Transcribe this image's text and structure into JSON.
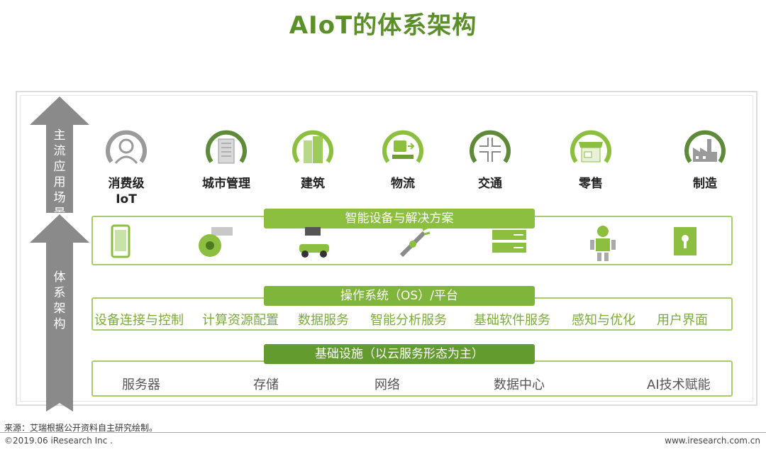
{
  "title": "AIoT的体系架构",
  "axis": {
    "top_label": "主流应用场景",
    "bottom_label": "体系架构"
  },
  "scenarios": [
    {
      "label_line1": "消费级",
      "label_line2": "IoT",
      "icon": "person-icon"
    },
    {
      "label_line1": "城市管理",
      "label_line2": "",
      "icon": "city-building-icon"
    },
    {
      "label_line1": "建筑",
      "label_line2": "",
      "icon": "building-icon"
    },
    {
      "label_line1": "物流",
      "label_line2": "",
      "icon": "logistics-icon"
    },
    {
      "label_line1": "交通",
      "label_line2": "",
      "icon": "traffic-icon"
    },
    {
      "label_line1": "零售",
      "label_line2": "",
      "icon": "store-icon"
    },
    {
      "label_line1": "制造",
      "label_line2": "",
      "icon": "factory-icon"
    }
  ],
  "layers": {
    "devices": {
      "title": "智能设备与解决方案",
      "icons": [
        "phone-icon",
        "camera-icon",
        "robot-vehicle-icon",
        "robot-arm-icon",
        "server-icon",
        "robot-icon",
        "smart-lock-icon"
      ]
    },
    "os": {
      "title": "操作系统（OS）/平台",
      "items": [
        "设备连接与控制",
        "计算资源配置",
        "数据服务",
        "智能分析服务",
        "基础软件服务",
        "感知与优化",
        "用户界面"
      ]
    },
    "infra": {
      "title": "基础设施（以云服务形态为主）",
      "items": [
        "服务器",
        "存储",
        "网络",
        "数据中心",
        "AI技术赋能"
      ]
    }
  },
  "footer": {
    "source": "来源：艾瑞根据公开资料自主研究绘制。",
    "copyright": "©2019.06 iResearch Inc .",
    "website": "www.iresearch.com.cn"
  },
  "colors": {
    "title": "#5a8f2a",
    "light_green": "#8cbf3f",
    "dark_green": "#639b2f",
    "gray": "#8a8a8a"
  }
}
